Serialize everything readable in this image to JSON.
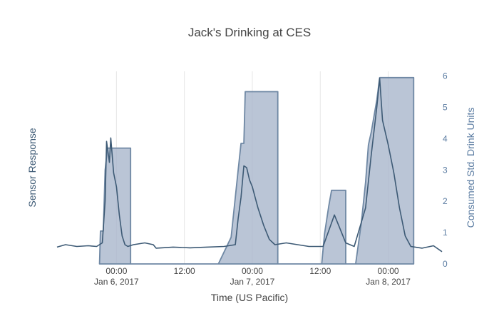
{
  "chart_data": {
    "type": "line-area-dual-axis",
    "title": "Jack's Drinking at CES",
    "xlabel": "Time (US Pacific)",
    "ylabel_left": "Sensor Response",
    "ylabel_right": "Consumed Std. Drink Units",
    "x_ticks": [
      {
        "t": "2017-01-06T00:00",
        "label": [
          "00:00",
          "Jan 6, 2017"
        ]
      },
      {
        "t": "2017-01-06T12:00",
        "label": [
          "12:00",
          ""
        ]
      },
      {
        "t": "2017-01-07T00:00",
        "label": [
          "00:00",
          "Jan 7, 2017"
        ]
      },
      {
        "t": "2017-01-07T12:00",
        "label": [
          "12:00",
          ""
        ]
      },
      {
        "t": "2017-01-08T00:00",
        "label": [
          "00:00",
          "Jan 8, 2017"
        ]
      }
    ],
    "xlim": [
      "2017-01-05T13:30",
      "2017-01-08T09:30"
    ],
    "y2_ticks": [
      0,
      1,
      2,
      3,
      4,
      5,
      6
    ],
    "y2lim": [
      0,
      6.15
    ],
    "y1lim": [
      0,
      5.5
    ],
    "grid": "vertical",
    "colors": {
      "sensor_line": "#3d5a75",
      "area_fill": "#a9b7cc",
      "area_line": "#6f88a4",
      "right_axis": "#5b7ca2",
      "left_axis_title": "#3d5a75",
      "grid": "#e6e6e6"
    },
    "series": [
      {
        "name": "Consumed Std. Drink Units",
        "axis": "right",
        "kind": "area",
        "points": [
          [
            "2017-01-05T21:00",
            0
          ],
          [
            "2017-01-05T21:10",
            1.05
          ],
          [
            "2017-01-05T21:40",
            1.05
          ],
          [
            "2017-01-05T22:00",
            3.0
          ],
          [
            "2017-01-05T22:25",
            3.7
          ],
          [
            "2017-01-06T02:30",
            3.7
          ],
          [
            "2017-01-06T02:30",
            0
          ],
          [
            "2017-01-06T18:00",
            0
          ],
          [
            "2017-01-06T20:15",
            0.85
          ],
          [
            "2017-01-06T21:30",
            3.0
          ],
          [
            "2017-01-06T22:00",
            3.85
          ],
          [
            "2017-01-06T22:30",
            3.85
          ],
          [
            "2017-01-06T22:45",
            5.5
          ],
          [
            "2017-01-07T04:30",
            5.5
          ],
          [
            "2017-01-07T04:30",
            0
          ],
          [
            "2017-01-07T12:15",
            0
          ],
          [
            "2017-01-07T12:45",
            0.95
          ],
          [
            "2017-01-07T13:30",
            1.85
          ],
          [
            "2017-01-07T14:00",
            2.35
          ],
          [
            "2017-01-07T16:30",
            2.35
          ],
          [
            "2017-01-07T16:30",
            0
          ],
          [
            "2017-01-07T18:15",
            0
          ],
          [
            "2017-01-07T19:15",
            1.3
          ],
          [
            "2017-01-07T20:00",
            2.6
          ],
          [
            "2017-01-07T20:30",
            3.8
          ],
          [
            "2017-01-07T21:00",
            4.2
          ],
          [
            "2017-01-07T22:00",
            5.25
          ],
          [
            "2017-01-07T22:30",
            5.95
          ],
          [
            "2017-01-08T04:30",
            5.95
          ],
          [
            "2017-01-08T04:30",
            0
          ]
        ]
      },
      {
        "name": "Sensor Response",
        "axis": "left",
        "kind": "line",
        "points": [
          [
            "2017-01-05T13:30",
            0.48
          ],
          [
            "2017-01-05T15:00",
            0.55
          ],
          [
            "2017-01-05T17:00",
            0.5
          ],
          [
            "2017-01-05T19:00",
            0.52
          ],
          [
            "2017-01-05T20:30",
            0.5
          ],
          [
            "2017-01-05T21:30",
            0.6
          ],
          [
            "2017-01-05T22:00",
            1.8
          ],
          [
            "2017-01-05T22:15",
            3.5
          ],
          [
            "2017-01-05T22:45",
            2.9
          ],
          [
            "2017-01-05T23:00",
            3.6
          ],
          [
            "2017-01-05T23:30",
            2.6
          ],
          [
            "2017-01-06T00:00",
            2.2
          ],
          [
            "2017-01-06T00:30",
            1.4
          ],
          [
            "2017-01-06T01:00",
            0.8
          ],
          [
            "2017-01-06T01:30",
            0.55
          ],
          [
            "2017-01-06T02:00",
            0.5
          ],
          [
            "2017-01-06T03:00",
            0.55
          ],
          [
            "2017-01-06T05:00",
            0.6
          ],
          [
            "2017-01-06T06:30",
            0.55
          ],
          [
            "2017-01-06T07:00",
            0.45
          ],
          [
            "2017-01-06T10:00",
            0.48
          ],
          [
            "2017-01-06T13:00",
            0.46
          ],
          [
            "2017-01-06T16:00",
            0.48
          ],
          [
            "2017-01-06T19:00",
            0.5
          ],
          [
            "2017-01-06T21:00",
            0.55
          ],
          [
            "2017-01-06T21:30",
            1.3
          ],
          [
            "2017-01-06T22:00",
            1.9
          ],
          [
            "2017-01-06T22:30",
            2.8
          ],
          [
            "2017-01-06T23:00",
            2.75
          ],
          [
            "2017-01-06T23:30",
            2.4
          ],
          [
            "2017-01-07T00:00",
            2.2
          ],
          [
            "2017-01-07T00:30",
            1.9
          ],
          [
            "2017-01-07T01:00",
            1.6
          ],
          [
            "2017-01-07T02:00",
            1.1
          ],
          [
            "2017-01-07T03:00",
            0.7
          ],
          [
            "2017-01-07T04:00",
            0.55
          ],
          [
            "2017-01-07T06:00",
            0.6
          ],
          [
            "2017-01-07T08:00",
            0.55
          ],
          [
            "2017-01-07T10:00",
            0.5
          ],
          [
            "2017-01-07T12:30",
            0.5
          ],
          [
            "2017-01-07T13:30",
            0.95
          ],
          [
            "2017-01-07T14:30",
            1.4
          ],
          [
            "2017-01-07T15:30",
            1.0
          ],
          [
            "2017-01-07T16:30",
            0.6
          ],
          [
            "2017-01-07T18:00",
            0.5
          ],
          [
            "2017-01-07T20:00",
            1.6
          ],
          [
            "2017-01-07T21:00",
            3.1
          ],
          [
            "2017-01-07T22:00",
            4.5
          ],
          [
            "2017-01-07T22:30",
            5.3
          ],
          [
            "2017-01-07T23:00",
            4.1
          ],
          [
            "2017-01-08T00:00",
            3.4
          ],
          [
            "2017-01-08T01:00",
            2.6
          ],
          [
            "2017-01-08T02:00",
            1.6
          ],
          [
            "2017-01-08T03:00",
            0.8
          ],
          [
            "2017-01-08T04:00",
            0.5
          ],
          [
            "2017-01-08T06:00",
            0.45
          ],
          [
            "2017-01-08T08:00",
            0.52
          ],
          [
            "2017-01-08T09:30",
            0.35
          ]
        ]
      }
    ]
  }
}
